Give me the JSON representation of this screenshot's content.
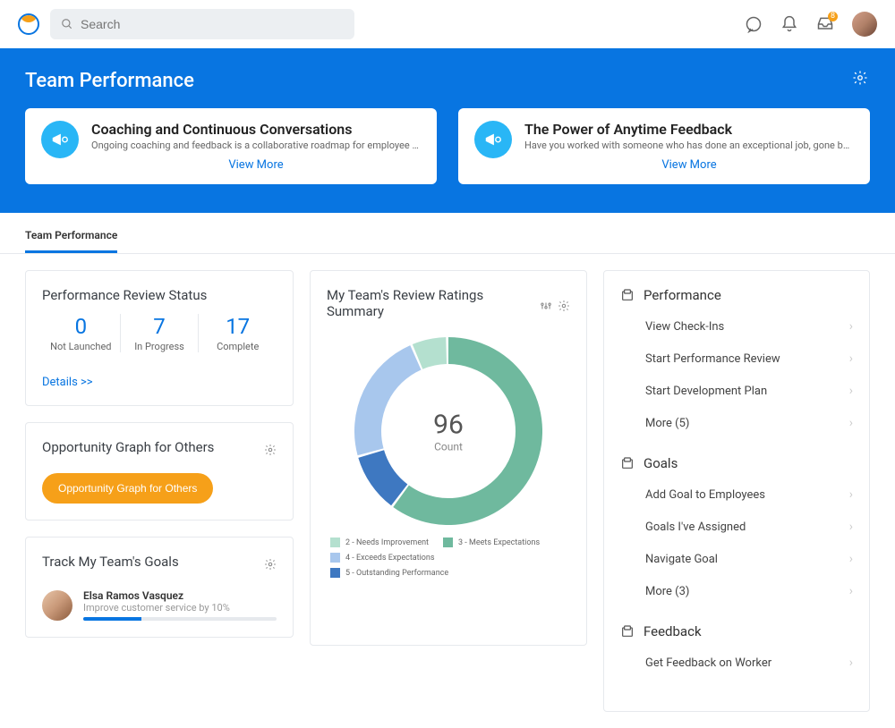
{
  "topbar": {
    "search_placeholder": "Search",
    "inbox_badge": "8"
  },
  "banner": {
    "title": "Team Performance",
    "cards": [
      {
        "title": "Coaching and Continuous Conversations",
        "desc": "Ongoing coaching and feedback is a collaborative roadmap for employee achievement and su...",
        "link": "View More"
      },
      {
        "title": "The Power of Anytime Feedback",
        "desc": "Have you worked with someone who has done an exceptional job, gone beyond the call of dut...",
        "link": "View More"
      }
    ]
  },
  "tabs": {
    "active": "Team Performance"
  },
  "review_status": {
    "title": "Performance Review Status",
    "items": [
      {
        "value": "0",
        "label": "Not Launched"
      },
      {
        "value": "7",
        "label": "In Progress"
      },
      {
        "value": "17",
        "label": "Complete"
      }
    ],
    "details": "Details >>"
  },
  "opportunity": {
    "title": "Opportunity Graph for Others",
    "button": "Opportunity Graph for Others"
  },
  "goals_panel": {
    "title": "Track My Team's Goals",
    "entry": {
      "name": "Elsa Ramos Vasquez",
      "desc": "Improve customer service by 10%",
      "progress_pct": 30
    }
  },
  "donut_chart": {
    "title": "My Team's Review Ratings Summary",
    "center_value": "96",
    "center_label": "Count",
    "size": 210,
    "stroke_width": 30,
    "background": "#ffffff",
    "slices": [
      {
        "label": "3 - Meets Expectations",
        "value": 58,
        "color": "#6fb99e"
      },
      {
        "label": "5 - Outstanding Performance",
        "value": 10,
        "color": "#3e78c1"
      },
      {
        "label": "4 - Exceeds Expectations",
        "value": 22,
        "color": "#a8c7ed"
      },
      {
        "label": "2 - Needs Improvement",
        "value": 6,
        "color": "#b4e0cf"
      }
    ],
    "legend_order": [
      {
        "label": "2 - Needs Improvement",
        "color": "#b4e0cf"
      },
      {
        "label": "3 - Meets Expectations",
        "color": "#6fb99e"
      },
      {
        "label": "4 - Exceeds Expectations",
        "color": "#a8c7ed"
      },
      {
        "label": "5 - Outstanding Performance",
        "color": "#3e78c1"
      }
    ]
  },
  "sidebar": {
    "sections": [
      {
        "title": "Performance",
        "links": [
          "View Check-Ins",
          "Start Performance Review",
          "Start Development Plan",
          "More (5)"
        ]
      },
      {
        "title": "Goals",
        "links": [
          "Add Goal to Employees",
          "Goals I've Assigned",
          "Navigate Goal",
          "More (3)"
        ]
      },
      {
        "title": "Feedback",
        "links": [
          "Get Feedback on Worker"
        ]
      }
    ]
  }
}
